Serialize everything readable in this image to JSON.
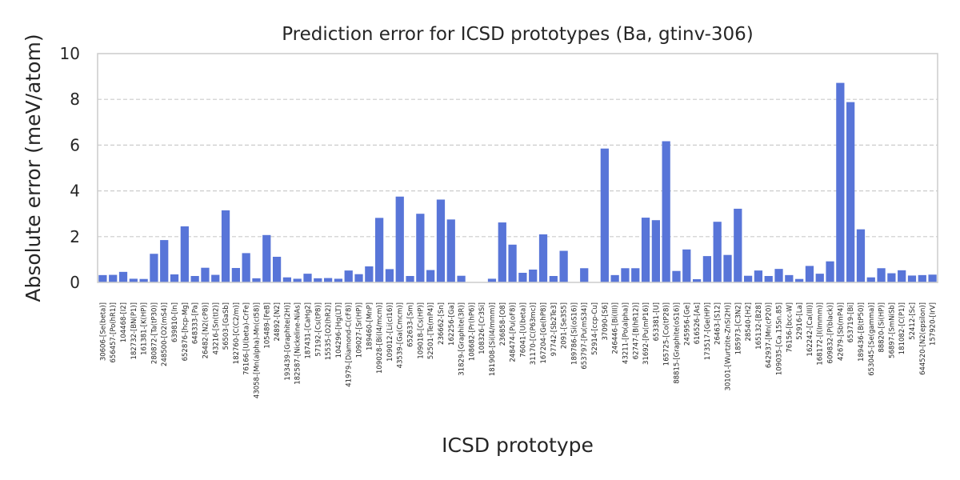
{
  "chart_data": {
    "type": "bar",
    "title": "Prediction error for ICSD prototypes (Ba, gtinv-306)",
    "xlabel": "ICSD prototype",
    "ylabel": "Absolute error (meV/atom)",
    "ylim": [
      0,
      10
    ],
    "yticks": [
      "0",
      "2",
      "4",
      "6",
      "8",
      "10"
    ],
    "grid": "horizontal dashed",
    "color": "#5875d8",
    "categories": [
      "30606-[Se(beta)]",
      "656457-[Po(hR1)]",
      "104468-[I2]",
      "182732-[BN(P1)]",
      "161381-[K(HP)]",
      "280872-[Ta(tP30)]",
      "248500-[O2(mS4)]",
      "639810-[In]",
      "652876-[hcp-Mg]",
      "648333-[Pa]",
      "26482-[N2(cP8)]",
      "43216-[Sn(tI2)]",
      "56503-[GaSb]",
      "182760-[C(C2/m)]",
      "76166-[U(beta)-CrFe]",
      "43058-[Mn(alpha)-Mn(cI58)]",
      "105489-[FeB]",
      "24892-[N2]",
      "193439-[Graphite(2H)]",
      "182587-[Nickeline-NiAs]",
      "187431-[CaHg2]",
      "57192-[Cs(tP8)]",
      "15535-[O2(hR2)]",
      "104296-[Hg(LT)]",
      "41979-[Diamond-C(cF8)]",
      "109027-[Sr(HP)]",
      "189460-[MnP]",
      "109028-[Bi(I4/mcm)]",
      "109012-[Li(cI16)]",
      "43539-[Ga(Cmcm)]",
      "652633-[Sm]",
      "109018-[Cs(HP)]",
      "52501-[Te(mP4)]",
      "236662-[Sn]",
      "162256-[Ga]",
      "31829-[Graphite(3R)]",
      "108682-[Pr(hP6)]",
      "108326-[Cr3Si]",
      "181908-[Si(I4/mmm)]",
      "236858-[O8]",
      "248474-[Pu(oF8)]",
      "76041-[U(beta)]",
      "31170-[C(P63mc)]",
      "167204-[Ge(hP8)]",
      "97742-[Sb2Te3]",
      "2091-[Se3S5]",
      "189786-[Si(oS16)]",
      "653797-[Pu(mS34)]",
      "52914-[ccp-Cu]",
      "37090-[S6]",
      "246446-[Bi(III)]",
      "43211-[Po(alpha)]",
      "62747-[B(hR12)]",
      "31692-[Pu(mP16)]",
      "653381-[U]",
      "165725-[Co(tP28)]",
      "88815-[Graphite(oS16)]",
      "245956-[Ge]",
      "616526-[As]",
      "173517-[Ge(HP)]",
      "26463-[S12]",
      "30101-[Wurtzite-ZnS(2H)]",
      "185973-[C3N2]",
      "28540-[H2]",
      "165132-[B28]",
      "642937-[Mn(cP20)]",
      "109035-[Ca.15Sn.85]",
      "76156-[bcc-W]",
      "52916-[La]",
      "162242-[Ca(III)]",
      "168172-[I(Immm)]",
      "609832-[P(black)]",
      "42679-[Sb(mP4)]",
      "653719-[Bi]",
      "189436-[B(tP50)]",
      "653045-[Se(gamma)]",
      "88820-[Si(HP)]",
      "56897-[SmNiSb]",
      "181082-[C(P1)]",
      "52412-[Sc]",
      "644520-[N2(epsilon)]",
      "157920-[IrV]"
    ],
    "values": [
      0.32,
      0.33,
      0.46,
      0.16,
      0.15,
      1.25,
      1.85,
      0.35,
      2.45,
      0.28,
      0.64,
      0.33,
      3.15,
      0.63,
      1.28,
      0.18,
      2.07,
      1.12,
      0.22,
      0.16,
      0.38,
      0.18,
      0.19,
      0.16,
      0.52,
      0.36,
      0.7,
      2.82,
      0.58,
      3.75,
      0.28,
      3.0,
      0.54,
      3.62,
      2.75,
      0.29,
      0.0,
      0.0,
      0.16,
      2.62,
      1.65,
      0.42,
      0.56,
      2.1,
      0.28,
      1.38,
      0.0,
      0.62,
      0.0,
      5.85,
      0.32,
      0.62,
      0.62,
      2.83,
      2.72,
      6.17,
      0.5,
      1.44,
      0.14,
      1.15,
      2.65,
      1.2,
      3.22,
      0.29,
      0.52,
      0.28,
      0.59,
      0.32,
      0.15,
      0.72,
      0.38,
      0.92,
      8.72,
      7.88,
      2.32,
      0.22,
      0.62,
      0.4,
      0.53,
      0.3,
      0.32,
      0.34
    ]
  }
}
